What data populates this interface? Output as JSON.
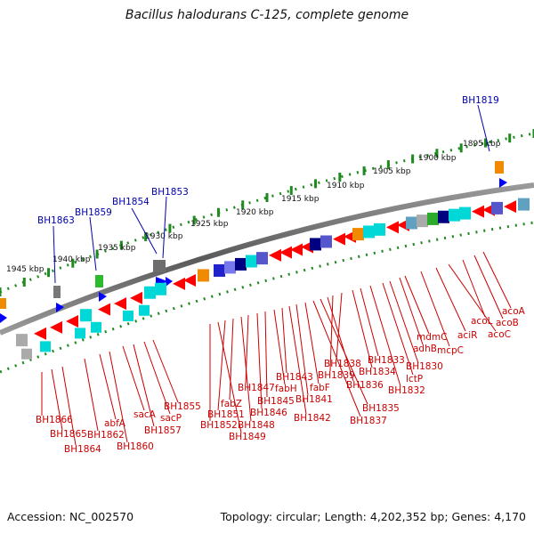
{
  "title": "Bacillus halodurans C-125, complete genome",
  "footer": {
    "accession": "Accession: NC_002570",
    "info": "Topology: circular; Length: 4,202,352 bp; Genes: 4,170"
  },
  "colors": {
    "backbone": "#7a7a7a",
    "scale_dots": "#1f8a1f",
    "gene_arrow": "#ff0000",
    "callout_blue": "#0000aa",
    "callout_red": "#cc0000"
  },
  "scale_ticks": [
    "1895 kbp",
    "1900 kbp",
    "1905 kbp",
    "1910 kbp",
    "1915 kbp",
    "1920 kbp",
    "1925 kbp",
    "1930 kbp",
    "1935 kbp",
    "1940 kbp",
    "1945 kbp"
  ],
  "blue_labels": [
    "BH1819",
    "BH1853",
    "BH1854",
    "BH1859",
    "BH1863"
  ],
  "red_labels": [
    "acoA",
    "acoB",
    "acoL",
    "acoC",
    "aciR",
    "mcpC",
    "mdmC",
    "adhB",
    "BH1830",
    "lctP",
    "BH1832",
    "BH1833",
    "BH1834",
    "BH1838",
    "BH1839",
    "BH1836",
    "BH1835",
    "BH1837",
    "fabF",
    "BH1841",
    "BH1842",
    "BH1843",
    "fabH",
    "BH1845",
    "BH1846",
    "BH1847",
    "BH1848",
    "fabZ",
    "BH1851",
    "BH1849",
    "BH1852",
    "BH1855",
    "sacP",
    "BH1857",
    "sacA",
    "BH1860",
    "abfA",
    "BH1862",
    "BH1864",
    "BH1865",
    "BH1866"
  ]
}
